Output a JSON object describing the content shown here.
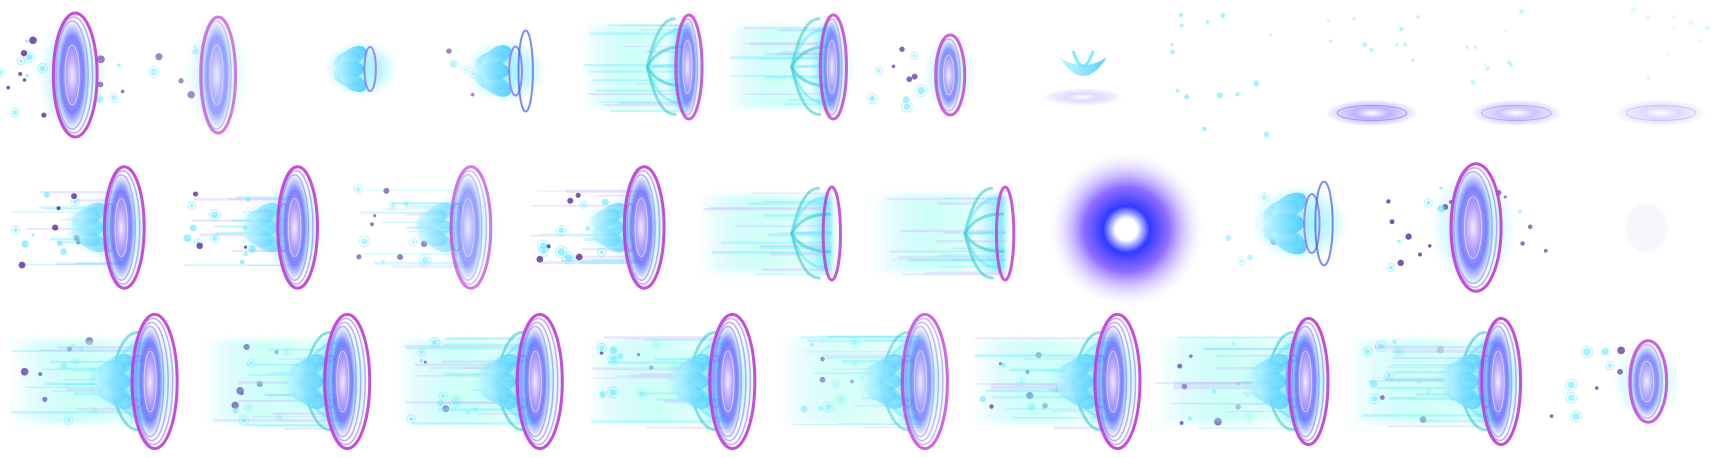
{
  "sheet": {
    "background": "#ffffff",
    "palette": {
      "cyan": "#5ee7ff",
      "blue": "#3b5bff",
      "violet": "#8a6bff",
      "magenta": "#c03ad6",
      "lavender": "#c9b8ff",
      "pale": "#e8f6ff",
      "mint": "#b8ffe6",
      "dot_purple": "#5a2a9a"
    },
    "rows": [
      {
        "frames": [
          {
            "kind": "shield-open"
          },
          {
            "kind": "shield-faint"
          },
          {
            "kind": "lotus"
          },
          {
            "kind": "lotus-ring"
          },
          {
            "kind": "beam"
          },
          {
            "kind": "beam"
          },
          {
            "kind": "shield-small"
          },
          {
            "kind": "bud"
          },
          {
            "kind": "sparkles"
          },
          {
            "kind": "disc-flat"
          },
          {
            "kind": "disc-flat-faint"
          },
          {
            "kind": "disc-flat-fade"
          }
        ]
      },
      {
        "frames": [
          {
            "kind": "burst-shield"
          },
          {
            "kind": "burst-shield"
          },
          {
            "kind": "burst-shield-faint"
          },
          {
            "kind": "burst-shield"
          },
          {
            "kind": "beam-ring"
          },
          {
            "kind": "beam-ring"
          },
          {
            "kind": "orb"
          },
          {
            "kind": "lotus-ring"
          },
          {
            "kind": "shield-open"
          },
          {
            "kind": "ghost"
          }
        ]
      },
      {
        "frames": [
          {
            "kind": "blast"
          },
          {
            "kind": "blast"
          },
          {
            "kind": "blast"
          },
          {
            "kind": "blast"
          },
          {
            "kind": "blast-faint"
          },
          {
            "kind": "blast"
          },
          {
            "kind": "blast-wide"
          },
          {
            "kind": "blast-wide"
          },
          {
            "kind": "shield-small"
          }
        ]
      }
    ]
  }
}
